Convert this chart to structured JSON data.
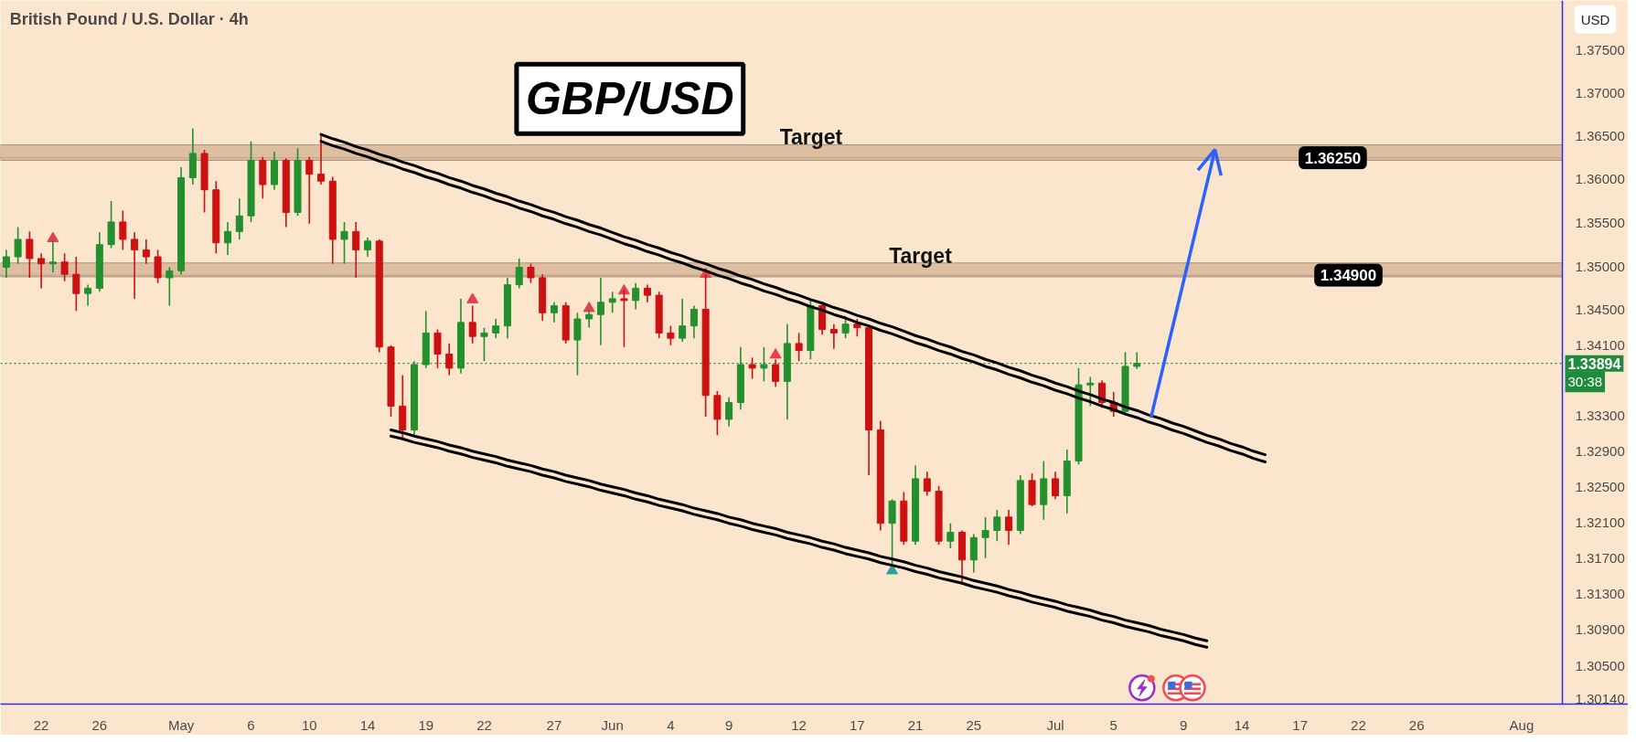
{
  "chart_data": {
    "type": "candlestick",
    "title": "British Pound / U.S. Dollar · 4h",
    "ylabel": "USD",
    "log": true,
    "ylim": [
      1.3008,
      1.3808
    ],
    "yticks": [
      {
        "value": 1.375,
        "label": "1.37500"
      },
      {
        "value": 1.37,
        "label": "1.37000"
      },
      {
        "value": 1.365,
        "label": "1.36500"
      },
      {
        "value": 1.36,
        "label": "1.36000"
      },
      {
        "value": 1.355,
        "label": "1.35500"
      },
      {
        "value": 1.35,
        "label": "1.35000"
      },
      {
        "value": 1.345,
        "label": "1.34500"
      },
      {
        "value": 1.341,
        "label": "1.34100"
      },
      {
        "value": 1.333,
        "label": "1.33300"
      },
      {
        "value": 1.329,
        "label": "1.32900"
      },
      {
        "value": 1.325,
        "label": "1.32500"
      },
      {
        "value": 1.321,
        "label": "1.32100"
      },
      {
        "value": 1.317,
        "label": "1.31700"
      },
      {
        "value": 1.313,
        "label": "1.31300"
      },
      {
        "value": 1.309,
        "label": "1.30900"
      },
      {
        "value": 1.305,
        "label": "1.30500"
      },
      {
        "value": 1.3014,
        "label": "1.30140"
      }
    ],
    "categories": [
      null,
      null,
      null,
      "22",
      null,
      null,
      null,
      null,
      "26",
      null,
      null,
      null,
      null,
      null,
      null,
      "May",
      null,
      null,
      null,
      null,
      null,
      "6",
      null,
      null,
      null,
      null,
      "10",
      null,
      null,
      null,
      null,
      "14",
      null,
      null,
      null,
      null,
      "19",
      null,
      null,
      null,
      null,
      "22",
      null,
      null,
      null,
      null,
      null,
      "27",
      null,
      null,
      null,
      null,
      "Jun",
      null,
      null,
      null,
      null,
      "4",
      null,
      null,
      null,
      null,
      "9",
      null,
      null,
      null,
      null,
      null,
      "12",
      null,
      null,
      null,
      null,
      "17",
      null,
      null,
      null,
      null,
      "21",
      null,
      null,
      null,
      null,
      "25",
      null,
      null,
      null,
      null,
      null,
      null,
      "Jul",
      null,
      null,
      null,
      null,
      "5",
      null,
      null,
      null,
      null,
      null,
      "9",
      null,
      null,
      null,
      null,
      "14",
      null,
      null,
      null,
      null,
      "17",
      null,
      null,
      null,
      null,
      "22",
      null,
      null,
      null,
      null,
      "26",
      null,
      null,
      null,
      null,
      null,
      null,
      null,
      null,
      "Aug",
      null,
      null,
      null
    ],
    "ohlc": [
      [
        1.3499,
        1.3519,
        1.3487,
        1.3511
      ],
      [
        1.3511,
        1.3545,
        1.3503,
        1.3531
      ],
      [
        1.3531,
        1.354,
        1.3487,
        1.3509
      ],
      [
        1.3509,
        1.3515,
        1.3475,
        1.3503
      ],
      [
        1.3503,
        1.3531,
        1.3493,
        1.3505
      ],
      [
        1.3505,
        1.3515,
        1.3483,
        1.3491
      ],
      [
        1.3491,
        1.3511,
        1.3449,
        1.3469
      ],
      [
        1.3469,
        1.3479,
        1.3455,
        1.3475
      ],
      [
        1.3475,
        1.3539,
        1.3471,
        1.3525
      ],
      [
        1.3525,
        1.3575,
        1.3521,
        1.3551
      ],
      [
        1.3551,
        1.3564,
        1.3519,
        1.3531
      ],
      [
        1.3531,
        1.3539,
        1.3463,
        1.3519
      ],
      [
        1.3519,
        1.3531,
        1.3503,
        1.3511
      ],
      [
        1.3511,
        1.3519,
        1.3481,
        1.3487
      ],
      [
        1.3487,
        1.3499,
        1.3455,
        1.3495
      ],
      [
        1.3495,
        1.3614,
        1.3491,
        1.3602
      ],
      [
        1.3602,
        1.3659,
        1.3594,
        1.363
      ],
      [
        1.363,
        1.3634,
        1.3562,
        1.3588
      ],
      [
        1.3588,
        1.3598,
        1.3515,
        1.3527
      ],
      [
        1.3527,
        1.3551,
        1.3513,
        1.354
      ],
      [
        1.354,
        1.3578,
        1.3531,
        1.3558
      ],
      [
        1.3558,
        1.3644,
        1.3551,
        1.3622
      ],
      [
        1.3622,
        1.3626,
        1.3578,
        1.3594
      ],
      [
        1.3594,
        1.3632,
        1.3588,
        1.3622
      ],
      [
        1.3622,
        1.3624,
        1.3545,
        1.3562
      ],
      [
        1.3562,
        1.3636,
        1.3558,
        1.3622
      ],
      [
        1.3622,
        1.3626,
        1.3549,
        1.3606
      ],
      [
        1.3606,
        1.3652,
        1.3594,
        1.3598
      ],
      [
        1.3598,
        1.3603,
        1.3503,
        1.3531
      ],
      [
        1.3531,
        1.3551,
        1.3503,
        1.354
      ],
      [
        1.354,
        1.3551,
        1.3487,
        1.3519
      ],
      [
        1.3519,
        1.3533,
        1.3511,
        1.3529
      ],
      [
        1.3529,
        1.3531,
        1.3402,
        1.3408
      ],
      [
        1.3408,
        1.341,
        1.3329,
        1.3341
      ],
      [
        1.3341,
        1.3376,
        1.3305,
        1.3314
      ],
      [
        1.3314,
        1.3392,
        1.3307,
        1.3388
      ],
      [
        1.3388,
        1.3449,
        1.3384,
        1.3424
      ],
      [
        1.3424,
        1.3428,
        1.3384,
        1.34
      ],
      [
        1.34,
        1.3412,
        1.3376,
        1.3384
      ],
      [
        1.3384,
        1.3463,
        1.3378,
        1.3436
      ],
      [
        1.3436,
        1.3455,
        1.3412,
        1.342
      ],
      [
        1.342,
        1.343,
        1.3392,
        1.3424
      ],
      [
        1.3424,
        1.344,
        1.3418,
        1.3432
      ],
      [
        1.3432,
        1.3487,
        1.3418,
        1.3479
      ],
      [
        1.3479,
        1.3509,
        1.3475,
        1.3499
      ],
      [
        1.3499,
        1.3503,
        1.3481,
        1.3487
      ],
      [
        1.3487,
        1.3491,
        1.3438,
        1.3447
      ],
      [
        1.3447,
        1.3459,
        1.3436,
        1.3455
      ],
      [
        1.3455,
        1.3459,
        1.3412,
        1.3416
      ],
      [
        1.3416,
        1.3447,
        1.3376,
        1.344
      ],
      [
        1.344,
        1.3451,
        1.343,
        1.3445
      ],
      [
        1.3445,
        1.3487,
        1.341,
        1.3459
      ],
      [
        1.3459,
        1.3471,
        1.3447,
        1.3463
      ],
      [
        1.3463,
        1.3473,
        1.3408,
        1.3461
      ],
      [
        1.3461,
        1.3481,
        1.3451,
        1.3475
      ],
      [
        1.3475,
        1.3479,
        1.3459,
        1.3467
      ],
      [
        1.3467,
        1.3471,
        1.3418,
        1.3424
      ],
      [
        1.3424,
        1.3432,
        1.341,
        1.3418
      ],
      [
        1.3418,
        1.3463,
        1.3414,
        1.3432
      ],
      [
        1.3432,
        1.3455,
        1.3418,
        1.3451
      ],
      [
        1.3451,
        1.3491,
        1.3329,
        1.3353
      ],
      [
        1.3353,
        1.3358,
        1.3308,
        1.3326
      ],
      [
        1.3326,
        1.3351,
        1.3318,
        1.3345
      ],
      [
        1.3345,
        1.3408,
        1.3337,
        1.3388
      ],
      [
        1.3388,
        1.3396,
        1.3372,
        1.3384
      ],
      [
        1.3384,
        1.3408,
        1.3369,
        1.3388
      ],
      [
        1.3388,
        1.3394,
        1.3363,
        1.3369
      ],
      [
        1.3369,
        1.3434,
        1.3326,
        1.3412
      ],
      [
        1.3412,
        1.3424,
        1.3392,
        1.3404
      ],
      [
        1.3404,
        1.3461,
        1.3394,
        1.3455
      ],
      [
        1.3455,
        1.3459,
        1.3422,
        1.3428
      ],
      [
        1.3428,
        1.3434,
        1.3406,
        1.3424
      ],
      [
        1.3424,
        1.3443,
        1.3418,
        1.3434
      ],
      [
        1.3434,
        1.344,
        1.342,
        1.343
      ],
      [
        1.343,
        1.3432,
        1.3263,
        1.3314
      ],
      [
        1.3314,
        1.3324,
        1.3201,
        1.3209
      ],
      [
        1.3209,
        1.3236,
        1.3162,
        1.3234
      ],
      [
        1.3234,
        1.3244,
        1.3185,
        1.3189
      ],
      [
        1.3189,
        1.3274,
        1.3185,
        1.3259
      ],
      [
        1.3259,
        1.3267,
        1.324,
        1.3245
      ],
      [
        1.3245,
        1.3251,
        1.3185,
        1.3189
      ],
      [
        1.3189,
        1.3209,
        1.3181,
        1.3199
      ],
      [
        1.3199,
        1.3201,
        1.3141,
        1.3168
      ],
      [
        1.3168,
        1.3197,
        1.3154,
        1.3193
      ],
      [
        1.3193,
        1.3216,
        1.317,
        1.3201
      ],
      [
        1.3201,
        1.3224,
        1.3189,
        1.3216
      ],
      [
        1.3216,
        1.3224,
        1.3185,
        1.3201
      ],
      [
        1.3201,
        1.3263,
        1.3197,
        1.3257
      ],
      [
        1.3257,
        1.3265,
        1.3228,
        1.323
      ],
      [
        1.323,
        1.3279,
        1.3213,
        1.3259
      ],
      [
        1.3259,
        1.3267,
        1.3236,
        1.324
      ],
      [
        1.324,
        1.3292,
        1.322,
        1.3279
      ],
      [
        1.3279,
        1.3384,
        1.3275,
        1.3365
      ],
      [
        1.3365,
        1.3374,
        1.3341,
        1.3367
      ],
      [
        1.3367,
        1.337,
        1.3339,
        1.3345
      ],
      [
        1.3345,
        1.3357,
        1.3329,
        1.3335
      ],
      [
        1.3335,
        1.3402,
        1.3333,
        1.3386
      ],
      [
        1.3386,
        1.3402,
        1.3383,
        1.33894
      ],
      null,
      null,
      null,
      null,
      null,
      null,
      null,
      null,
      null,
      null,
      null,
      null,
      null,
      null,
      null,
      null,
      null,
      null,
      null,
      null,
      null,
      null,
      null,
      null,
      null,
      null,
      null,
      null,
      null,
      null,
      null,
      null,
      null,
      null,
      null,
      null
    ],
    "colors": [
      "#22902d",
      "#22902d",
      "#cc1111",
      "#cc1111",
      "#22902d",
      "#cc1111",
      "#cc1111",
      "#22902d",
      "#22902d",
      "#22902d",
      "#cc1111",
      "#cc1111",
      "#cc1111",
      "#cc1111",
      "#22902d",
      "#22902d",
      "#22902d",
      "#cc1111",
      "#cc1111",
      "#22902d",
      "#22902d",
      "#22902d",
      "#cc1111",
      "#22902d",
      "#cc1111",
      "#22902d",
      "#cc1111",
      "#cc1111",
      "#cc1111",
      "#22902d",
      "#cc1111",
      "#22902d",
      "#cc1111",
      "#cc1111",
      "#cc1111",
      "#22902d",
      "#22902d",
      "#cc1111",
      "#cc1111",
      "#22902d",
      "#cc1111",
      "#22902d",
      "#22902d",
      "#22902d",
      "#22902d",
      "#cc1111",
      "#cc1111",
      "#22902d",
      "#cc1111",
      "#22902d",
      "#22902d",
      "#22902d",
      "#22902d",
      "#cc1111",
      "#22902d",
      "#cc1111",
      "#cc1111",
      "#cc1111",
      "#22902d",
      "#22902d",
      "#cc1111",
      "#cc1111",
      "#22902d",
      "#22902d",
      "#cc1111",
      "#22902d",
      "#cc1111",
      "#22902d",
      "#cc1111",
      "#22902d",
      "#cc1111",
      "#cc1111",
      "#22902d",
      "#cc1111",
      "#cc1111",
      "#cc1111",
      "#22902d",
      "#cc1111",
      "#22902d",
      "#cc1111",
      "#cc1111",
      "#22902d",
      "#cc1111",
      "#22902d",
      "#22902d",
      "#22902d",
      "#cc1111",
      "#22902d",
      "#cc1111",
      "#22902d",
      "#cc1111",
      "#22902d",
      "#22902d",
      "#22902d",
      "#cc1111",
      "#cc1111",
      "#22902d",
      "#22902d",
      null,
      null,
      null,
      null,
      null,
      null,
      null,
      null,
      null,
      null,
      null,
      null,
      null,
      null,
      null,
      null,
      null,
      null,
      null,
      null,
      null,
      null,
      null,
      null,
      null,
      null,
      null,
      null,
      null,
      null,
      null,
      null,
      null,
      null,
      null,
      null
    ],
    "series": [
      {
        "type": "line",
        "color": "#000000",
        "values": [
          null,
          null,
          null,
          null,
          null,
          null,
          null,
          null,
          null,
          null,
          null,
          null,
          null,
          null,
          null,
          null,
          null,
          null,
          null,
          null,
          null,
          null,
          null,
          null,
          null,
          null,
          null,
          1.3652,
          1.3647,
          1.3643,
          1.3638,
          1.3634,
          1.3629,
          1.3625,
          1.362,
          1.3616,
          1.3611,
          1.3607,
          1.3602,
          1.3598,
          1.3593,
          1.3589,
          1.3584,
          1.358,
          1.3575,
          1.3571,
          1.3566,
          1.3562,
          1.3557,
          1.3553,
          1.3548,
          1.3544,
          1.3539,
          1.3534,
          1.353,
          1.3525,
          1.3521,
          1.3516,
          1.3512,
          1.3507,
          1.3503,
          1.3498,
          1.3494,
          1.3489,
          1.3485,
          1.348,
          1.3476,
          1.3471,
          1.3467,
          1.3462,
          1.3458,
          1.3453,
          1.3449,
          1.3444,
          1.344,
          1.3435,
          1.3431,
          1.3426,
          1.3421,
          1.3417,
          1.3412,
          1.3408,
          1.3403,
          1.3399,
          1.3394,
          1.339,
          1.3385,
          1.3381,
          1.3376,
          1.3372,
          1.3367,
          1.3363,
          1.3358,
          1.3354,
          1.3349,
          1.3345,
          1.334,
          1.3336,
          1.3331,
          1.3327,
          1.3322,
          1.3318,
          1.3313,
          1.3308,
          1.3304,
          1.3299,
          1.3295,
          1.329,
          1.3286,
          null,
          null,
          null,
          null,
          null,
          null,
          null,
          null,
          null,
          null,
          null,
          null,
          null,
          null,
          null,
          null,
          null,
          null,
          null,
          null,
          null,
          null,
          null,
          null,
          null
        ]
      },
      {
        "type": "line",
        "color": "#000000",
        "values": [
          null,
          null,
          null,
          null,
          null,
          null,
          null,
          null,
          null,
          null,
          null,
          null,
          null,
          null,
          null,
          null,
          null,
          null,
          null,
          null,
          null,
          null,
          null,
          null,
          null,
          null,
          null,
          1.3644,
          1.3639,
          1.3635,
          1.363,
          1.3626,
          1.3621,
          1.3617,
          1.3612,
          1.3608,
          1.3603,
          1.3599,
          1.3594,
          1.359,
          1.3585,
          1.3581,
          1.3576,
          1.3572,
          1.3567,
          1.3563,
          1.3558,
          1.3554,
          1.3549,
          1.3545,
          1.354,
          1.3536,
          1.3531,
          1.3526,
          1.3522,
          1.3517,
          1.3513,
          1.3508,
          1.3504,
          1.3499,
          1.3495,
          1.349,
          1.3486,
          1.3481,
          1.3477,
          1.3472,
          1.3468,
          1.3463,
          1.3459,
          1.3454,
          1.345,
          1.3445,
          1.3441,
          1.3436,
          1.3432,
          1.3427,
          1.3423,
          1.3418,
          1.3413,
          1.3409,
          1.3404,
          1.34,
          1.3395,
          1.3391,
          1.3386,
          1.3382,
          1.3377,
          1.3373,
          1.3368,
          1.3364,
          1.3359,
          1.3355,
          1.335,
          1.3346,
          1.3341,
          1.3337,
          1.3332,
          1.3328,
          1.3323,
          1.3319,
          1.3314,
          1.331,
          1.3305,
          1.33,
          1.3296,
          1.3291,
          1.3287,
          1.3282,
          1.3278,
          null,
          null,
          null,
          null,
          null,
          null,
          null,
          null,
          null,
          null,
          null,
          null,
          null,
          null,
          null,
          null,
          null,
          null,
          null,
          null,
          null,
          null,
          null,
          null,
          null
        ]
      },
      {
        "type": "line",
        "color": "#000000",
        "values": [
          null,
          null,
          null,
          null,
          null,
          null,
          null,
          null,
          null,
          null,
          null,
          null,
          null,
          null,
          null,
          null,
          null,
          null,
          null,
          null,
          null,
          null,
          null,
          null,
          null,
          null,
          null,
          null,
          null,
          null,
          null,
          null,
          null,
          1.3314,
          1.3311,
          1.3307,
          1.3304,
          1.3301,
          1.3297,
          1.3294,
          1.329,
          1.3287,
          1.3284,
          1.328,
          1.3277,
          1.3274,
          1.327,
          1.3267,
          1.3263,
          1.326,
          1.3257,
          1.3253,
          1.325,
          1.3247,
          1.3243,
          1.324,
          1.3236,
          1.3233,
          1.323,
          1.3226,
          1.3223,
          1.322,
          1.3216,
          1.3213,
          1.3209,
          1.3206,
          1.3203,
          1.3199,
          1.3196,
          1.3193,
          1.3189,
          1.3186,
          1.3182,
          1.3179,
          1.3176,
          1.3172,
          1.3169,
          1.3166,
          1.3162,
          1.3159,
          1.3155,
          1.3152,
          1.3149,
          1.3145,
          1.3142,
          1.3139,
          1.3135,
          1.3132,
          1.3128,
          1.3125,
          1.3122,
          1.3118,
          1.3115,
          1.3112,
          1.3108,
          1.3105,
          1.3101,
          1.3098,
          1.3095,
          1.3091,
          1.3088,
          1.3085,
          1.3081,
          1.3078,
          null,
          null,
          null,
          null,
          null,
          null,
          null,
          null,
          null,
          null,
          null,
          null,
          null,
          null,
          null,
          null,
          null,
          null,
          null,
          null,
          null,
          null,
          null,
          null,
          null,
          null,
          null,
          null,
          null,
          null
        ]
      },
      {
        "type": "line",
        "color": "#000000",
        "values": [
          null,
          null,
          null,
          null,
          null,
          null,
          null,
          null,
          null,
          null,
          null,
          null,
          null,
          null,
          null,
          null,
          null,
          null,
          null,
          null,
          null,
          null,
          null,
          null,
          null,
          null,
          null,
          null,
          null,
          null,
          null,
          null,
          null,
          1.3307,
          1.3304,
          1.33,
          1.3297,
          1.3294,
          1.329,
          1.3287,
          1.3283,
          1.328,
          1.3277,
          1.3273,
          1.327,
          1.3267,
          1.3263,
          1.326,
          1.3256,
          1.3253,
          1.325,
          1.3246,
          1.3243,
          1.324,
          1.3236,
          1.3233,
          1.3229,
          1.3226,
          1.3223,
          1.3219,
          1.3216,
          1.3213,
          1.3209,
          1.3206,
          1.3202,
          1.3199,
          1.3196,
          1.3192,
          1.3189,
          1.3186,
          1.3182,
          1.3179,
          1.3175,
          1.3172,
          1.3169,
          1.3165,
          1.3162,
          1.3159,
          1.3155,
          1.3152,
          1.3148,
          1.3145,
          1.3142,
          1.3138,
          1.3135,
          1.3132,
          1.3128,
          1.3125,
          1.3121,
          1.3118,
          1.3115,
          1.3111,
          1.3108,
          1.3105,
          1.3101,
          1.3098,
          1.3094,
          1.3091,
          1.3088,
          1.3084,
          1.3081,
          1.3078,
          1.3074,
          1.3071,
          null,
          null,
          null,
          null,
          null,
          null,
          null,
          null,
          null,
          null,
          null,
          null,
          null,
          null,
          null,
          null,
          null,
          null,
          null,
          null,
          null,
          null,
          null,
          null,
          null,
          null,
          null,
          null,
          null,
          null
        ]
      },
      {
        "type": "scatter",
        "marker": "triangle",
        "color": "#e5404f",
        "values": [
          null,
          null,
          null,
          null,
          1.3532,
          null,
          null,
          null,
          null,
          null,
          null,
          null,
          null,
          null,
          null,
          null,
          null,
          null,
          null,
          null,
          null,
          null,
          null,
          null,
          null,
          null,
          null,
          null,
          null,
          null,
          null,
          null,
          null,
          null,
          null,
          null,
          null,
          null,
          null,
          null,
          1.3462,
          null,
          null,
          null,
          null,
          null,
          null,
          null,
          null,
          null,
          1.3452,
          null,
          null,
          1.3472,
          null,
          null,
          null,
          null,
          null,
          null,
          1.3491,
          null,
          null,
          null,
          null,
          null,
          1.3399,
          null,
          null,
          null,
          null,
          null,
          null,
          null,
          null,
          null,
          null,
          null,
          null,
          null,
          null,
          null,
          null,
          null,
          null,
          null,
          null,
          null,
          null,
          null,
          null,
          null,
          null,
          null,
          null,
          null,
          null,
          null,
          null,
          null,
          null,
          null,
          null,
          null,
          null,
          null,
          null,
          null,
          null,
          null,
          null,
          null,
          null,
          null,
          null,
          null,
          null,
          null,
          null,
          null,
          null,
          null,
          null,
          null,
          null,
          null,
          null,
          null,
          null,
          null,
          null,
          null,
          null,
          null
        ]
      },
      {
        "type": "scatter",
        "marker": "triangle",
        "color": "#26a69a",
        "values": [
          null,
          null,
          null,
          null,
          null,
          null,
          null,
          null,
          null,
          null,
          null,
          null,
          null,
          null,
          null,
          null,
          null,
          null,
          null,
          null,
          null,
          null,
          null,
          null,
          null,
          null,
          null,
          null,
          null,
          null,
          null,
          null,
          null,
          null,
          null,
          null,
          null,
          null,
          null,
          null,
          null,
          null,
          null,
          null,
          null,
          null,
          null,
          null,
          null,
          null,
          null,
          null,
          null,
          null,
          null,
          null,
          null,
          null,
          null,
          null,
          null,
          null,
          null,
          null,
          null,
          null,
          null,
          null,
          null,
          null,
          null,
          null,
          null,
          null,
          null,
          null,
          1.3156,
          null,
          null,
          null,
          null,
          null,
          null,
          null,
          null,
          null,
          null,
          null,
          null,
          null,
          null,
          null,
          null,
          null,
          null,
          null,
          null,
          null,
          null,
          null,
          null,
          null,
          null,
          null,
          null,
          null,
          null,
          null,
          null,
          null,
          null,
          null,
          null,
          null,
          null,
          null,
          null,
          null,
          null,
          null,
          null,
          null,
          null,
          null,
          null,
          null,
          null,
          null,
          null,
          null,
          null,
          null,
          null,
          null
        ]
      }
    ],
    "bands": [
      {
        "axis": "y",
        "from": 1.3622,
        "to": 1.364,
        "label": "Target",
        "color": "#d9b99b"
      },
      {
        "axis": "y",
        "from": 1.3488,
        "to": 1.3504,
        "label": "Target",
        "color": "#d9b99b"
      }
    ],
    "ref_lines": [
      {
        "axis": "y",
        "value": 1.3625,
        "label": "1.36250",
        "color": "#000000"
      },
      {
        "axis": "y",
        "value": 1.349,
        "label": "1.34900",
        "color": "#000000"
      },
      {
        "axis": "y",
        "value": 1.33894,
        "label": "1.33894",
        "color": "#1e8c3a",
        "line_style": "dotted"
      }
    ],
    "annotations": [
      "GBP/USD",
      "30:38"
    ]
  }
}
